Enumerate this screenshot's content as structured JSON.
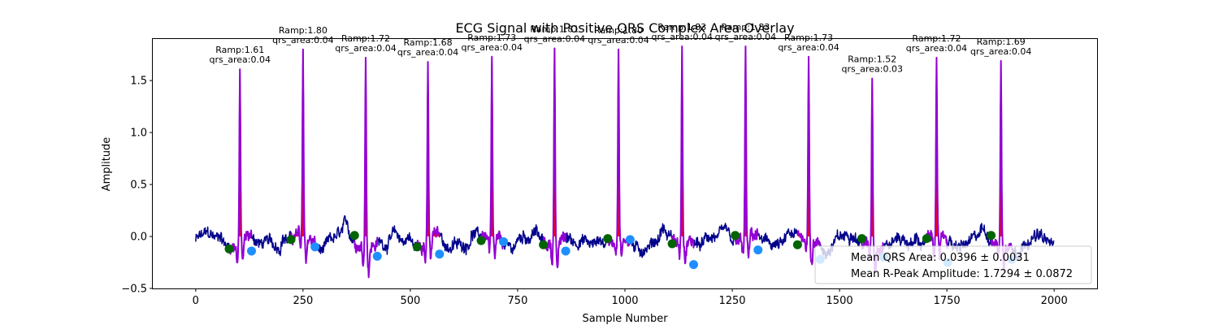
{
  "chart_data": {
    "type": "line",
    "title": "ECG Signal with Positive QRS Complex Area Overlay",
    "xlabel": "Sample Number",
    "ylabel": "Amplitude",
    "xlim": [
      -100,
      2100
    ],
    "ylim": [
      -0.5,
      1.9
    ],
    "xticks": [
      0,
      250,
      500,
      750,
      1000,
      1250,
      1500,
      1750,
      2000
    ],
    "yticks": [
      -0.5,
      0.0,
      0.5,
      1.0,
      1.5
    ],
    "xtick_labels": [
      "0",
      "250",
      "500",
      "750",
      "1000",
      "1250",
      "1500",
      "1750",
      "2000"
    ],
    "ytick_labels": [
      "−0.5",
      "0.0",
      "0.5",
      "1.0",
      "1.5"
    ],
    "grid": false,
    "colors": {
      "signal": "#00008b",
      "qrs_segment": "#9400d3",
      "qrs_fill": "#ff0000",
      "q_marker": "#1e8fff",
      "s_marker": "#1e8fff",
      "onset_marker": "#006400"
    },
    "beats": [
      {
        "r": 103,
        "ramp": 1.61,
        "annot": [
          "Ramp:1.61",
          "qrs_area:0.04"
        ],
        "onset": [
          78,
          -0.12
        ],
        "offset": [
          130,
          -0.14
        ]
      },
      {
        "r": 250,
        "ramp": 1.8,
        "annot": [
          "Ramp:1.80",
          "qrs_area:0.04"
        ],
        "onset": [
          222,
          -0.03
        ],
        "offset": [
          278,
          -0.1
        ]
      },
      {
        "r": 396,
        "ramp": 1.72,
        "annot": [
          "Ramp:1.72",
          "qrs_area:0.04"
        ],
        "onset": [
          370,
          0.01
        ],
        "offset": [
          423,
          -0.19
        ]
      },
      {
        "r": 541,
        "ramp": 1.68,
        "annot": [
          "Ramp:1.68",
          "qrs_area:0.04"
        ],
        "onset": [
          516,
          -0.1
        ],
        "offset": [
          568,
          -0.17
        ]
      },
      {
        "r": 690,
        "ramp": 1.73,
        "annot": [
          "Ramp:1.73",
          "qrs_area:0.04"
        ],
        "onset": [
          665,
          -0.04
        ],
        "offset": [
          717,
          -0.05
        ]
      },
      {
        "r": 836,
        "ramp": 1.81,
        "annot": [
          "Ramp:1.81",
          "qrs_area:0.04"
        ],
        "onset": [
          810,
          -0.08
        ],
        "offset": [
          862,
          -0.14
        ]
      },
      {
        "r": 985,
        "ramp": 1.8,
        "annot": [
          "Ramp:1.80",
          "qrs_area:0.04"
        ],
        "onset": [
          960,
          -0.02
        ],
        "offset": [
          1012,
          -0.03
        ]
      },
      {
        "r": 1133,
        "ramp": 1.83,
        "annot": [
          "Ramp:1.83",
          "qrs_area:0.04"
        ],
        "onset": [
          1110,
          -0.07
        ],
        "offset": [
          1160,
          -0.27
        ]
      },
      {
        "r": 1281,
        "ramp": 1.83,
        "annot": [
          "Ramp:1.83",
          "qrs_area:0.04"
        ],
        "onset": [
          1257,
          0.01
        ],
        "offset": [
          1310,
          -0.13
        ]
      },
      {
        "r": 1428,
        "ramp": 1.73,
        "annot": [
          "Ramp:1.73",
          "qrs_area:0.04"
        ],
        "onset": [
          1402,
          -0.08
        ],
        "offset": [
          1455,
          -0.22
        ]
      },
      {
        "r": 1576,
        "ramp": 1.52,
        "annot": [
          "Ramp:1.52",
          "qrs_area:0.03"
        ],
        "onset": [
          1552,
          -0.02
        ],
        "offset": [
          1603,
          -0.2
        ]
      },
      {
        "r": 1726,
        "ramp": 1.72,
        "annot": [
          "Ramp:1.72",
          "qrs_area:0.04"
        ],
        "onset": [
          1703,
          -0.02
        ],
        "offset": [
          1752,
          -0.25
        ]
      },
      {
        "r": 1876,
        "ramp": 1.69,
        "annot": [
          "Ramp:1.69",
          "qrs_area:0.04"
        ],
        "onset": [
          1853,
          0.01
        ],
        "offset": [
          1901,
          -0.22
        ]
      }
    ],
    "legend": {
      "placement": "lower right",
      "entries": [
        "Mean QRS Area: 0.0396 ± 0.0031",
        "Mean R-Peak Amplitude: 1.7294 ± 0.0872"
      ]
    }
  }
}
